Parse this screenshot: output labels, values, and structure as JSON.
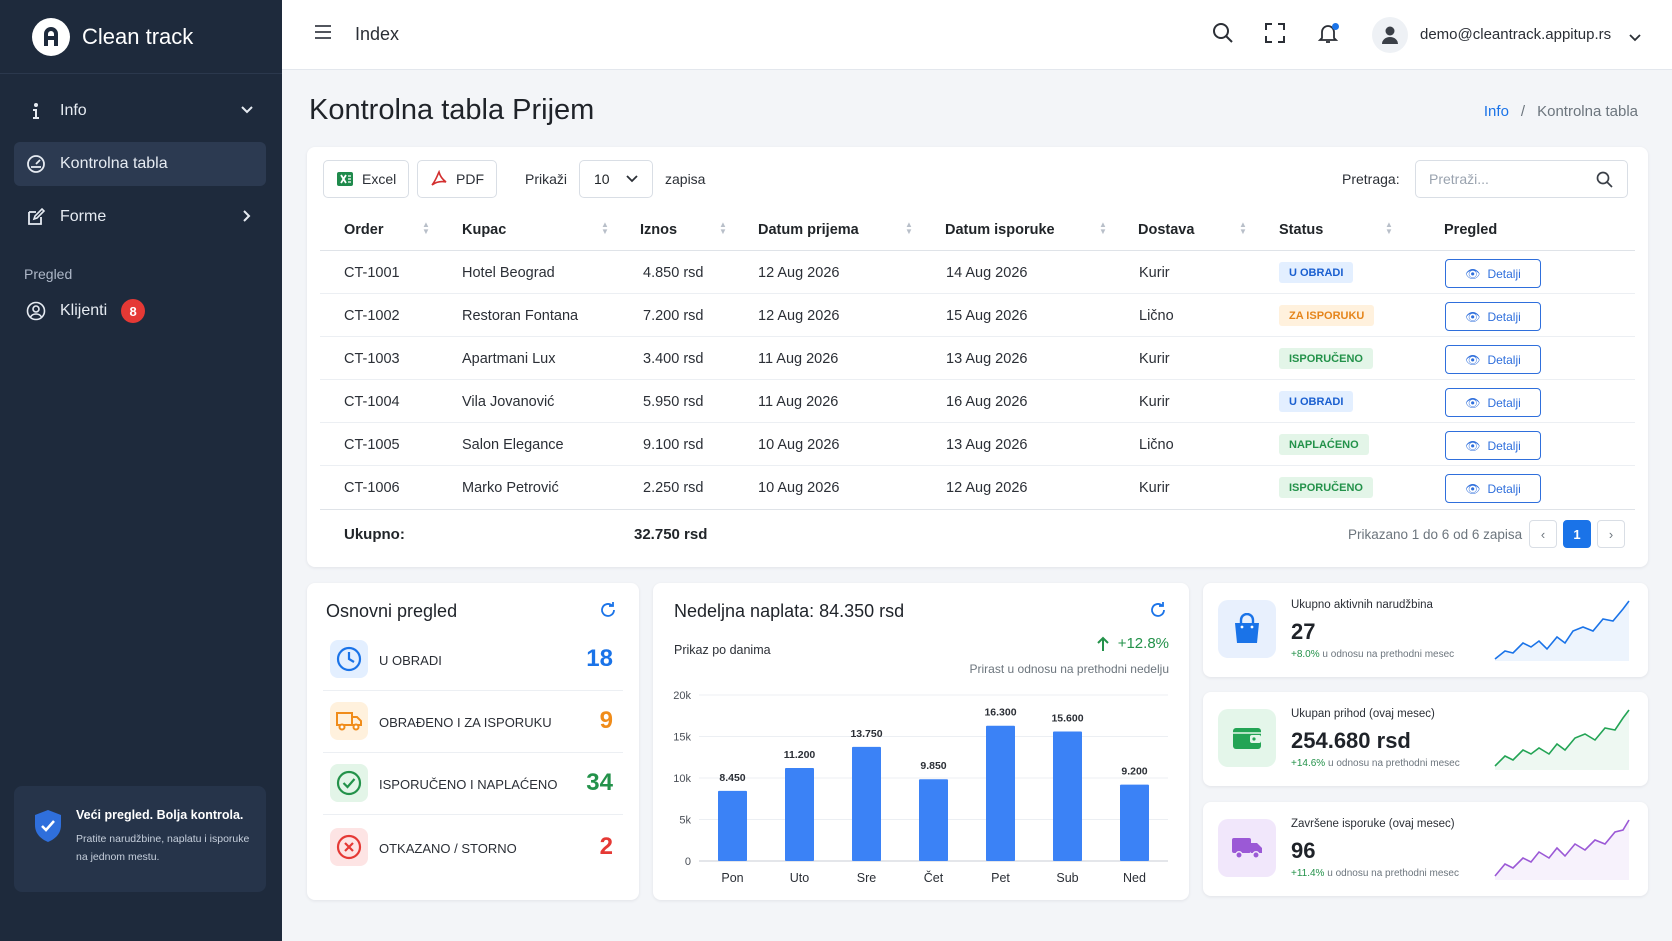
{
  "brand": {
    "name": "Clean track"
  },
  "sidebar": {
    "items": [
      {
        "label": "Info"
      },
      {
        "label": "Kontrolna tabla"
      },
      {
        "label": "Forme"
      }
    ],
    "section_label": "Pregled",
    "clients": {
      "label": "Klijenti",
      "badge": "8"
    },
    "promo": {
      "title": "Veći pregled. Bolja kontrola.",
      "text_line1": "Pratite narudžbine, naplatu i isporuke",
      "text_line2": "na jednom mestu."
    }
  },
  "header": {
    "title": "Index",
    "user_email": "demo@cleantrack.appitup.rs"
  },
  "page": {
    "title": "Kontrolna tabla Prijem",
    "breadcrumb": {
      "link": "Info",
      "separator": "/",
      "current": "Kontrolna tabla"
    }
  },
  "toolbar": {
    "excel_label": "Excel",
    "pdf_label": "PDF",
    "show_label": "Prikaži",
    "page_size": "10",
    "records_label": "zapisa",
    "search_label": "Pretraga:",
    "search_placeholder": "Pretraži..."
  },
  "table": {
    "columns": [
      "Order",
      "Kupac",
      "Iznos",
      "Datum prijema",
      "Datum isporuke",
      "Dostava",
      "Status",
      "Pregled"
    ],
    "rows": [
      {
        "order": "CT-1001",
        "kupac": "Hotel Beograd",
        "iznos": "4.850 rsd",
        "prijem": "12 Aug 2026",
        "isporuka": "14 Aug 2026",
        "dostava": "Kurir",
        "status": "U OBRADI",
        "action": "Detalji"
      },
      {
        "order": "CT-1002",
        "kupac": "Restoran Fontana",
        "iznos": "7.200 rsd",
        "prijem": "12 Aug 2026",
        "isporuka": "15 Aug 2026",
        "dostava": "Lično",
        "status": "ZA ISPORUKU",
        "action": "Detalji"
      },
      {
        "order": "CT-1003",
        "kupac": "Apartmani Lux",
        "iznos": "3.400 rsd",
        "prijem": "11 Aug 2026",
        "isporuka": "13 Aug 2026",
        "dostava": "Kurir",
        "status": "ISPORUČENO",
        "action": "Detalji"
      },
      {
        "order": "CT-1004",
        "kupac": "Vila Jovanović",
        "iznos": "5.950 rsd",
        "prijem": "11 Aug 2026",
        "isporuka": "16 Aug 2026",
        "dostava": "Kurir",
        "status": "U OBRADI",
        "action": "Detalji"
      },
      {
        "order": "CT-1005",
        "kupac": "Salon Elegance",
        "iznos": "9.100 rsd",
        "prijem": "10 Aug 2026",
        "isporuka": "13 Aug 2026",
        "dostava": "Lično",
        "status": "NAPLAĆENO",
        "action": "Detalji"
      },
      {
        "order": "CT-1006",
        "kupac": "Marko Petrović",
        "iznos": "2.250 rsd",
        "prijem": "10 Aug 2026",
        "isporuka": "12 Aug 2026",
        "dostava": "Kurir",
        "status": "ISPORUČENO",
        "action": "Detalji"
      }
    ],
    "footer": {
      "total_label": "Ukupno:",
      "total_value": "32.750 rsd",
      "info": "Prikazano 1 do 6 od 6 zapisa",
      "prev": "‹",
      "page": "1",
      "next": "›"
    }
  },
  "overview": {
    "title": "Osnovni pregled",
    "items": [
      {
        "label": "U OBRADI",
        "value": "18",
        "color": "#1a73e8"
      },
      {
        "label": "OBRAĐENO I ZA ISPORUKU",
        "value": "9",
        "color": "#f08c1a"
      },
      {
        "label": "ISPORUČENO I NAPLAĆENO",
        "value": "34",
        "color": "#23924a"
      },
      {
        "label": "OTKAZANO / STORNO",
        "value": "2",
        "color": "#e53935"
      }
    ]
  },
  "weekly": {
    "title": "Nedeljna naplata: 84.350 rsd",
    "subtitle": "Prikaz po danima",
    "growth": "+12.8%",
    "growth_note": "Prirast u odnosu na prethodni nedelju"
  },
  "chart_data": {
    "type": "bar",
    "categories": [
      "Pon",
      "Uto",
      "Sre",
      "Čet",
      "Pet",
      "Sub",
      "Ned"
    ],
    "values": [
      8450,
      11200,
      13750,
      9850,
      16300,
      15600,
      9200
    ],
    "value_labels": [
      "8.450",
      "11.200",
      "13.750",
      "9.850",
      "16.300",
      "15.600",
      "9.200"
    ],
    "ylim": [
      0,
      20000
    ],
    "y_ticks": [
      0,
      5000,
      10000,
      15000,
      20000
    ],
    "y_tick_labels": [
      "0",
      "5k",
      "10k",
      "15k",
      "20k"
    ],
    "grid": true,
    "bar_color": "#3b82f6"
  },
  "stats": [
    {
      "title": "Ukupno aktivnih narudžbina",
      "value": "27",
      "pct": "+8.0%",
      "note": "u odnosu na prethodni mesec",
      "color": "#1a73e8"
    },
    {
      "title": "Ukupan prihod (ovaj mesec)",
      "value": "254.680 rsd",
      "pct": "+14.6%",
      "note": "u odnosu na prethodni mesec",
      "color": "#23a455"
    },
    {
      "title": "Završene isporuke (ovaj mesec)",
      "value": "96",
      "pct": "+11.4%",
      "note": "u odnosu na prethodni mesec",
      "color": "#9b59d6"
    }
  ]
}
